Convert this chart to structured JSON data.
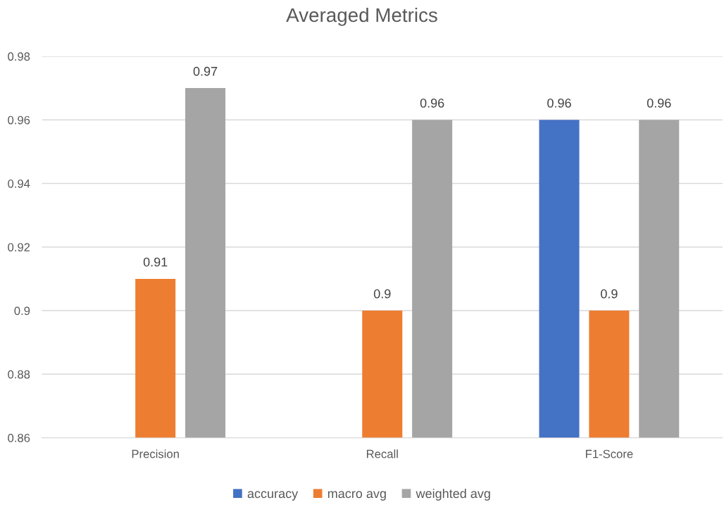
{
  "chart_data": {
    "type": "bar",
    "title": "Averaged Metrics",
    "categories": [
      "Precision",
      "Recall",
      "F1-Score"
    ],
    "series": [
      {
        "name": "accuracy",
        "color": "#4472c4",
        "values": [
          null,
          null,
          0.96
        ]
      },
      {
        "name": "macro avg",
        "color": "#ed7d31",
        "values": [
          0.91,
          0.9,
          0.9
        ]
      },
      {
        "name": "weighted avg",
        "color": "#a5a5a5",
        "values": [
          0.97,
          0.96,
          0.96
        ]
      }
    ],
    "ylim": [
      0.86,
      0.98
    ],
    "yticks": [
      0.86,
      0.88,
      0.9,
      0.92,
      0.94,
      0.96,
      0.98
    ],
    "grid": "y",
    "legend": "bottom",
    "data_labels": true
  }
}
